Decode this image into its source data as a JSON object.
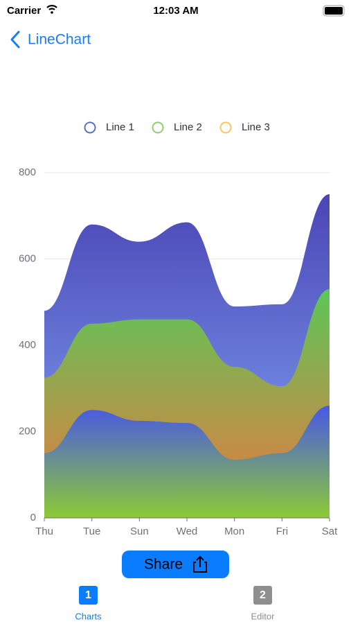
{
  "status_bar": {
    "carrier": "Carrier",
    "time": "12:03 AM"
  },
  "nav": {
    "title": "LineChart"
  },
  "chart_data": {
    "type": "area",
    "categories": [
      "Thu",
      "Tue",
      "Sun",
      "Wed",
      "Mon",
      "Fri",
      "Sat"
    ],
    "series": [
      {
        "name": "Line 1",
        "color": "#5470c6",
        "gradient": [
          "#4b45b5",
          "#82a8f7"
        ],
        "values": [
          480,
          680,
          640,
          685,
          490,
          495,
          750
        ]
      },
      {
        "name": "Line 2",
        "color": "#91cc75",
        "gradient": [
          "#5cc658",
          "#ec7740"
        ],
        "values": [
          325,
          450,
          460,
          460,
          350,
          305,
          530
        ]
      },
      {
        "name": "Line 3",
        "color": "#fac858",
        "gradient": [
          "#4858e6",
          "#8ccb34"
        ],
        "values": [
          150,
          250,
          225,
          220,
          135,
          150,
          260
        ]
      }
    ],
    "ylim": [
      0,
      800
    ],
    "yticks": [
      0,
      200,
      400,
      600,
      800
    ],
    "grid": true,
    "smooth": true,
    "legend": "top"
  },
  "share_button": {
    "label": "Share"
  },
  "tabs": [
    {
      "badge": "1",
      "label": "Charts"
    },
    {
      "badge": "2",
      "label": "Editor"
    }
  ]
}
